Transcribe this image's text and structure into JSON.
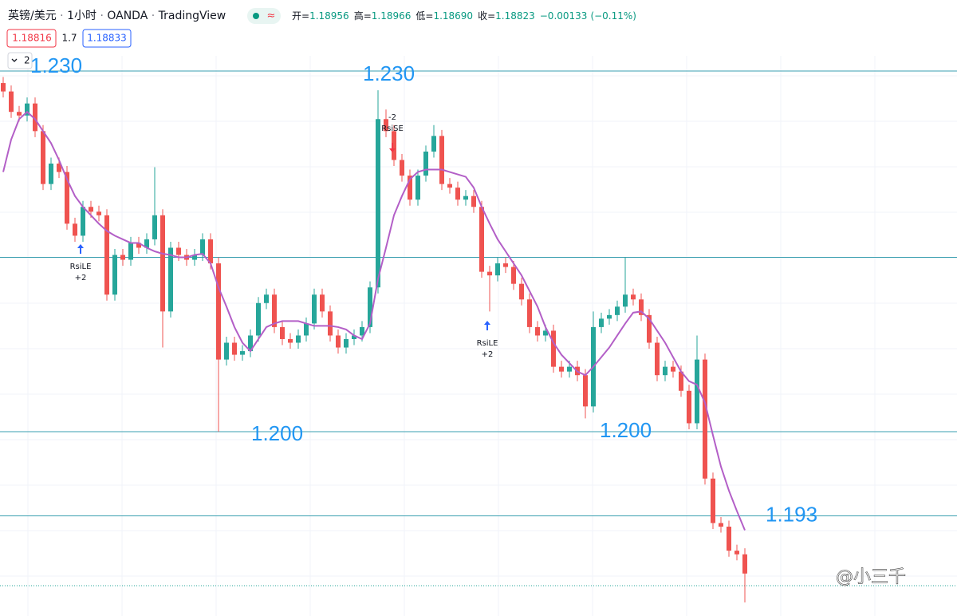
{
  "header": {
    "symbol": "英镑/美元",
    "interval": "1小时",
    "source": "OANDA",
    "platform": "TradingView",
    "status": "≈",
    "ohlc": [
      {
        "label": "开=",
        "value": "1.18956"
      },
      {
        "label": "高=",
        "value": "1.18966"
      },
      {
        "label": "低=",
        "value": "1.18690"
      },
      {
        "label": "收=",
        "value": "1.18823"
      }
    ],
    "change": "−0.00133",
    "change_pct": "(−0.11%)",
    "sell": "1.18816",
    "spread": "1.7",
    "buy": "1.18833",
    "indicators": "2"
  },
  "watermark": "@小三千",
  "chart_data": {
    "type": "candlestick",
    "up_color": "#26a69a",
    "down_color": "#ef5350",
    "ma_color": "#b35fc7",
    "line_color": "#3a9fb0",
    "price_lines": [
      {
        "value": 1.23,
        "labels": [
          "1.230",
          "1.230"
        ]
      },
      {
        "value": 1.2145
      },
      {
        "value": 1.2,
        "labels": [
          "1.200",
          "1.200"
        ]
      },
      {
        "value": 1.193,
        "labels": [
          "1.193"
        ]
      }
    ],
    "ohlc": [
      [
        1.229,
        1.2295,
        1.2278,
        1.2283
      ],
      [
        1.2283,
        1.2288,
        1.2261,
        1.2266
      ],
      [
        1.2266,
        1.2271,
        1.2258,
        1.2263
      ],
      [
        1.2263,
        1.2278,
        1.2258,
        1.2273
      ],
      [
        1.2273,
        1.2278,
        1.2245,
        1.225
      ],
      [
        1.225,
        1.2255,
        1.2201,
        1.2206
      ],
      [
        1.2206,
        1.2228,
        1.2201,
        1.2223
      ],
      [
        1.2223,
        1.2228,
        1.2211,
        1.2216
      ],
      [
        1.2216,
        1.2221,
        1.2168,
        1.2173
      ],
      [
        1.2173,
        1.2178,
        1.2158,
        1.2163
      ],
      [
        1.2163,
        1.2192,
        1.2158,
        1.2187
      ],
      [
        1.2187,
        1.2192,
        1.2178,
        1.2183
      ],
      [
        1.2183,
        1.2188,
        1.2175,
        1.218
      ],
      [
        1.218,
        1.2185,
        1.2109,
        1.2114
      ],
      [
        1.2114,
        1.2152,
        1.2109,
        1.2147
      ],
      [
        1.2147,
        1.2152,
        1.2138,
        1.2143
      ],
      [
        1.2143,
        1.2162,
        1.2138,
        1.2157
      ],
      [
        1.2157,
        1.2162,
        1.2148,
        1.2153
      ],
      [
        1.2153,
        1.2165,
        1.2148,
        1.216
      ],
      [
        1.216,
        1.222,
        1.2155,
        1.218
      ],
      [
        1.218,
        1.2185,
        1.207,
        1.21
      ],
      [
        1.21,
        1.2158,
        1.2095,
        1.2153
      ],
      [
        1.2153,
        1.2158,
        1.2142,
        1.2147
      ],
      [
        1.2147,
        1.2152,
        1.2138,
        1.2143
      ],
      [
        1.2143,
        1.2152,
        1.2138,
        1.2147
      ],
      [
        1.2147,
        1.2165,
        1.2142,
        1.216
      ],
      [
        1.216,
        1.2165,
        1.2135,
        1.214
      ],
      [
        1.214,
        1.2145,
        1.2,
        1.206
      ],
      [
        1.206,
        1.2079,
        1.2055,
        1.2074
      ],
      [
        1.2074,
        1.2079,
        1.2059,
        1.2064
      ],
      [
        1.2064,
        1.2072,
        1.2059,
        1.2067
      ],
      [
        1.2067,
        1.2085,
        1.2062,
        1.208
      ],
      [
        1.208,
        1.2112,
        1.2075,
        1.2107
      ],
      [
        1.2107,
        1.2119,
        1.2102,
        1.2114
      ],
      [
        1.2114,
        1.2119,
        1.2082,
        1.2087
      ],
      [
        1.2087,
        1.2092,
        1.2072,
        1.2077
      ],
      [
        1.2077,
        1.2082,
        1.2069,
        1.2074
      ],
      [
        1.2074,
        1.2085,
        1.2069,
        1.208
      ],
      [
        1.208,
        1.2095,
        1.2075,
        1.209
      ],
      [
        1.209,
        1.2119,
        1.2085,
        1.2114
      ],
      [
        1.2114,
        1.2119,
        1.2095,
        1.21
      ],
      [
        1.21,
        1.2105,
        1.2075,
        1.208
      ],
      [
        1.208,
        1.2085,
        1.2065,
        1.207
      ],
      [
        1.207,
        1.2082,
        1.2065,
        1.2077
      ],
      [
        1.2077,
        1.2085,
        1.2072,
        1.208
      ],
      [
        1.208,
        1.2092,
        1.2075,
        1.2087
      ],
      [
        1.2087,
        1.2125,
        1.2082,
        1.212
      ],
      [
        1.212,
        1.2284,
        1.2115,
        1.226
      ],
      [
        1.226,
        1.2268,
        1.2245,
        1.225
      ],
      [
        1.225,
        1.2255,
        1.2221,
        1.2226
      ],
      [
        1.2226,
        1.2231,
        1.2208,
        1.2213
      ],
      [
        1.2213,
        1.2218,
        1.2188,
        1.2193
      ],
      [
        1.2193,
        1.2218,
        1.2188,
        1.2213
      ],
      [
        1.2213,
        1.2238,
        1.2208,
        1.2233
      ],
      [
        1.2233,
        1.2255,
        1.2228,
        1.2246
      ],
      [
        1.2246,
        1.2251,
        1.2201,
        1.2206
      ],
      [
        1.2206,
        1.2211,
        1.2198,
        1.2203
      ],
      [
        1.2203,
        1.2208,
        1.2188,
        1.2193
      ],
      [
        1.2193,
        1.2201,
        1.2188,
        1.2196
      ],
      [
        1.2196,
        1.2201,
        1.2182,
        1.2187
      ],
      [
        1.2187,
        1.2192,
        1.2128,
        1.2133
      ],
      [
        1.2133,
        1.2138,
        1.21,
        1.213
      ],
      [
        1.213,
        1.2145,
        1.2125,
        1.214
      ],
      [
        1.214,
        1.2145,
        1.2132,
        1.2137
      ],
      [
        1.2137,
        1.2142,
        1.2118,
        1.2123
      ],
      [
        1.2123,
        1.2128,
        1.2105,
        1.211
      ],
      [
        1.211,
        1.2115,
        1.2082,
        1.2087
      ],
      [
        1.2087,
        1.2092,
        1.2075,
        1.208
      ],
      [
        1.208,
        1.2089,
        1.2075,
        1.2084
      ],
      [
        1.2084,
        1.2089,
        1.2049,
        1.2054
      ],
      [
        1.2054,
        1.2059,
        1.2045,
        1.205
      ],
      [
        1.205,
        1.2059,
        1.2045,
        1.2054
      ],
      [
        1.2054,
        1.2059,
        1.2042,
        1.2047
      ],
      [
        1.2047,
        1.2052,
        1.2011,
        1.2021
      ],
      [
        1.2021,
        1.21,
        1.2016,
        1.2087
      ],
      [
        1.2087,
        1.2099,
        1.2082,
        1.2094
      ],
      [
        1.2094,
        1.2102,
        1.2089,
        1.2097
      ],
      [
        1.2097,
        1.2109,
        1.2092,
        1.2104
      ],
      [
        1.2104,
        1.2145,
        1.2099,
        1.2114
      ],
      [
        1.2114,
        1.2119,
        1.2105,
        1.211
      ],
      [
        1.211,
        1.2115,
        1.2092,
        1.2097
      ],
      [
        1.2097,
        1.2102,
        1.2069,
        1.2074
      ],
      [
        1.2074,
        1.2079,
        1.2042,
        1.2047
      ],
      [
        1.2047,
        1.2059,
        1.2042,
        1.2054
      ],
      [
        1.2054,
        1.2059,
        1.2045,
        1.205
      ],
      [
        1.205,
        1.2055,
        1.2029,
        1.2034
      ],
      [
        1.2034,
        1.2039,
        1.2002,
        1.2007
      ],
      [
        1.2007,
        1.208,
        1.2002,
        1.206
      ],
      [
        1.206,
        1.2065,
        1.1956,
        1.1961
      ],
      [
        1.1961,
        1.1966,
        1.1919,
        1.1924
      ],
      [
        1.1924,
        1.1929,
        1.1916,
        1.1921
      ],
      [
        1.1921,
        1.1926,
        1.1896,
        1.1901
      ],
      [
        1.1901,
        1.1906,
        1.1893,
        1.1898
      ],
      [
        1.1898,
        1.1903,
        1.1858,
        1.1882
      ]
    ],
    "ma": [
      1.2216,
      1.2243,
      1.226,
      1.2266,
      1.226,
      1.225,
      1.224,
      1.2226,
      1.221,
      1.2196,
      1.2187,
      1.218,
      1.2173,
      1.2167,
      1.2163,
      1.216,
      1.2157,
      1.2157,
      1.2153,
      1.215,
      1.2148,
      1.2147,
      1.2145,
      1.2145,
      1.2147,
      1.2148,
      1.214,
      1.212,
      1.2104,
      1.2087,
      1.2074,
      1.2067,
      1.2077,
      1.2087,
      1.209,
      1.2092,
      1.2092,
      1.2092,
      1.209,
      1.2088,
      1.2088,
      1.2088,
      1.2087,
      1.2085,
      1.208,
      1.2077,
      1.209,
      1.2127,
      1.2153,
      1.218,
      1.2196,
      1.221,
      1.2216,
      1.2218,
      1.2218,
      1.2218,
      1.2216,
      1.2214,
      1.2212,
      1.2203,
      1.2187,
      1.2173,
      1.216,
      1.215,
      1.214,
      1.213,
      1.2117,
      1.2104,
      1.2087,
      1.2074,
      1.2064,
      1.2057,
      1.205,
      1.2047,
      1.2054,
      1.2062,
      1.207,
      1.208,
      1.209,
      1.2099,
      1.21,
      1.2094,
      1.2084,
      1.2074,
      1.2062,
      1.205,
      1.2042,
      1.2039,
      1.2024,
      1.1997,
      1.1971,
      1.1951,
      1.1934,
      1.1918
    ],
    "signals": [
      {
        "name": "RsiLE",
        "qty": "+2"
      },
      {
        "name": "RsiSE",
        "qty": "-2"
      },
      {
        "name": "RsiLE",
        "qty": "+2"
      }
    ]
  }
}
